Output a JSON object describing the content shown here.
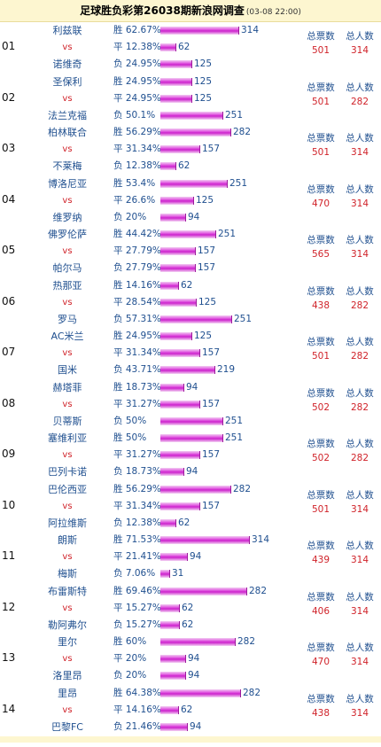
{
  "header": {
    "title": "足球胜负彩第26038期新浪网调查",
    "date": "(03-08 22:00)"
  },
  "stat_labels": {
    "total_votes": "总票数",
    "total_people": "总人数"
  },
  "matches": [
    {
      "no": "01",
      "total_votes": "501",
      "total_people": "314",
      "rows": [
        {
          "team": "利兹联",
          "label": "胜 62.67%",
          "count": "314",
          "fraction": 0.6267
        },
        {
          "team": "vs",
          "label": "平 12.38%",
          "count": "62",
          "fraction": 0.1238
        },
        {
          "team": "诺维奇",
          "label": "负 24.95%",
          "count": "125",
          "fraction": 0.2495
        }
      ]
    },
    {
      "no": "02",
      "total_votes": "501",
      "total_people": "282",
      "rows": [
        {
          "team": "圣保利",
          "label": "胜 24.95%",
          "count": "125",
          "fraction": 0.2495
        },
        {
          "team": "vs",
          "label": "平 24.95%",
          "count": "125",
          "fraction": 0.2495
        },
        {
          "team": "法兰克福",
          "label": "负  50.1%",
          "count": "251",
          "fraction": 0.501
        }
      ]
    },
    {
      "no": "03",
      "total_votes": "501",
      "total_people": "314",
      "rows": [
        {
          "team": "柏林联合",
          "label": "胜 56.29%",
          "count": "282",
          "fraction": 0.5629
        },
        {
          "team": "vs",
          "label": "平 31.34%",
          "count": "157",
          "fraction": 0.3134
        },
        {
          "team": "不莱梅",
          "label": "负 12.38%",
          "count": "62",
          "fraction": 0.1238
        }
      ]
    },
    {
      "no": "04",
      "total_votes": "470",
      "total_people": "314",
      "rows": [
        {
          "team": "博洛尼亚",
          "label": "胜 53.4%",
          "count": "251",
          "fraction": 0.534
        },
        {
          "team": "vs",
          "label": "平 26.6%",
          "count": "125",
          "fraction": 0.266
        },
        {
          "team": "维罗纳",
          "label": "负   20%",
          "count": "94",
          "fraction": 0.2
        }
      ]
    },
    {
      "no": "05",
      "total_votes": "565",
      "total_people": "314",
      "rows": [
        {
          "team": "佛罗伦萨",
          "label": "胜 44.42%",
          "count": "251",
          "fraction": 0.4442
        },
        {
          "team": "vs",
          "label": "平 27.79%",
          "count": "157",
          "fraction": 0.2779
        },
        {
          "team": "帕尔马",
          "label": "负 27.79%",
          "count": "157",
          "fraction": 0.2779
        }
      ]
    },
    {
      "no": "06",
      "total_votes": "438",
      "total_people": "282",
      "rows": [
        {
          "team": "热那亚",
          "label": "胜 14.16%",
          "count": "62",
          "fraction": 0.1416
        },
        {
          "team": "vs",
          "label": "平 28.54%",
          "count": "125",
          "fraction": 0.2854
        },
        {
          "team": "罗马",
          "label": "负 57.31%",
          "count": "251",
          "fraction": 0.5731
        }
      ]
    },
    {
      "no": "07",
      "total_votes": "501",
      "total_people": "282",
      "rows": [
        {
          "team": "AC米兰",
          "label": "胜 24.95%",
          "count": "125",
          "fraction": 0.2495
        },
        {
          "team": "vs",
          "label": "平 31.34%",
          "count": "157",
          "fraction": 0.3134
        },
        {
          "team": "国米",
          "label": "负 43.71%",
          "count": "219",
          "fraction": 0.4371
        }
      ]
    },
    {
      "no": "08",
      "total_votes": "502",
      "total_people": "282",
      "rows": [
        {
          "team": "赫塔菲",
          "label": "胜 18.73%",
          "count": "94",
          "fraction": 0.1873
        },
        {
          "team": "vs",
          "label": "平 31.27%",
          "count": "157",
          "fraction": 0.3127
        },
        {
          "team": "贝蒂斯",
          "label": "负    50%",
          "count": "251",
          "fraction": 0.5
        }
      ]
    },
    {
      "no": "09",
      "total_votes": "502",
      "total_people": "282",
      "rows": [
        {
          "team": "塞维利亚",
          "label": "胜    50%",
          "count": "251",
          "fraction": 0.5
        },
        {
          "team": "vs",
          "label": "平 31.27%",
          "count": "157",
          "fraction": 0.3127
        },
        {
          "team": "巴列卡诺",
          "label": "负 18.73%",
          "count": "94",
          "fraction": 0.1873
        }
      ]
    },
    {
      "no": "10",
      "total_votes": "501",
      "total_people": "314",
      "rows": [
        {
          "team": "巴伦西亚",
          "label": "胜 56.29%",
          "count": "282",
          "fraction": 0.5629
        },
        {
          "team": "vs",
          "label": "平 31.34%",
          "count": "157",
          "fraction": 0.3134
        },
        {
          "team": "阿拉维斯",
          "label": "负 12.38%",
          "count": "62",
          "fraction": 0.1238
        }
      ]
    },
    {
      "no": "11",
      "total_votes": "439",
      "total_people": "314",
      "rows": [
        {
          "team": "朗斯",
          "label": "胜 71.53%",
          "count": "314",
          "fraction": 0.7153
        },
        {
          "team": "vs",
          "label": "平 21.41%",
          "count": "94",
          "fraction": 0.2141
        },
        {
          "team": "梅斯",
          "label": "负  7.06%",
          "count": "31",
          "fraction": 0.0706
        }
      ]
    },
    {
      "no": "12",
      "total_votes": "406",
      "total_people": "314",
      "rows": [
        {
          "team": "布雷斯特",
          "label": "胜 69.46%",
          "count": "282",
          "fraction": 0.6946
        },
        {
          "team": "vs",
          "label": "平 15.27%",
          "count": "62",
          "fraction": 0.1527
        },
        {
          "team": "勒阿弗尔",
          "label": "负 15.27%",
          "count": "62",
          "fraction": 0.1527
        }
      ]
    },
    {
      "no": "13",
      "total_votes": "470",
      "total_people": "314",
      "rows": [
        {
          "team": "里尔",
          "label": "胜 60%",
          "count": "282",
          "fraction": 0.6
        },
        {
          "team": "vs",
          "label": "平 20%",
          "count": "94",
          "fraction": 0.2
        },
        {
          "team": "洛里昂",
          "label": "负 20%",
          "count": "94",
          "fraction": 0.2
        }
      ]
    },
    {
      "no": "14",
      "total_votes": "438",
      "total_people": "314",
      "rows": [
        {
          "team": "里昂",
          "label": "胜 64.38%",
          "count": "282",
          "fraction": 0.6438
        },
        {
          "team": "vs",
          "label": "平 14.16%",
          "count": "62",
          "fraction": 0.1416
        },
        {
          "team": "巴黎FC",
          "label": "负 21.46%",
          "count": "94",
          "fraction": 0.2146
        }
      ]
    }
  ]
}
